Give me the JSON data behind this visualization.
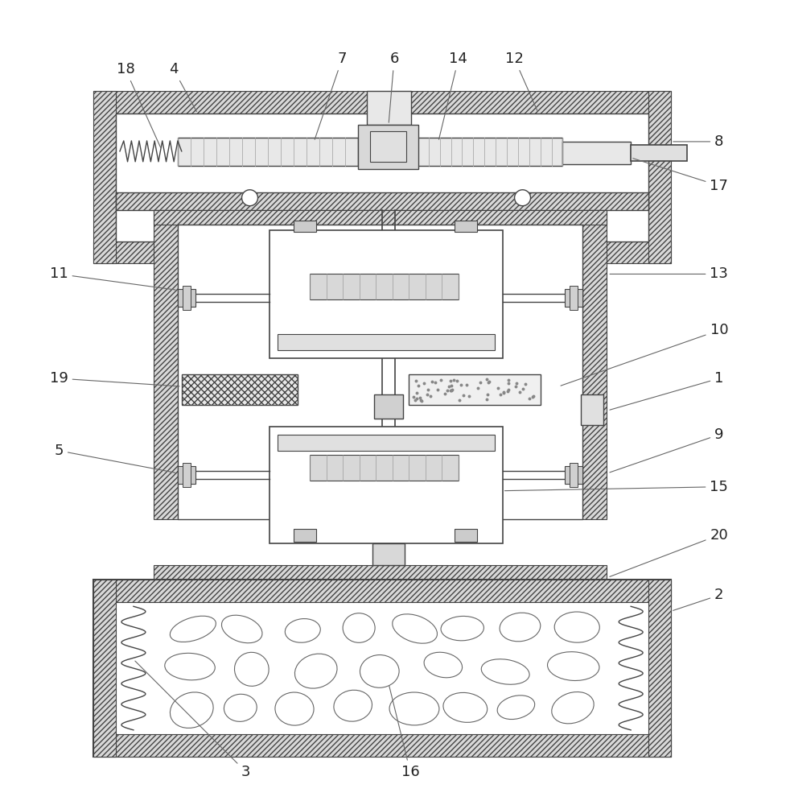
{
  "background_color": "#ffffff",
  "line_color": "#444444",
  "hatch_fc": "#d8d8d8",
  "label_color": "#222222",
  "label_fontsize": 13,
  "leader_color": "#666666",
  "fig_w": 9.82,
  "fig_h": 10.0,
  "dpi": 100
}
